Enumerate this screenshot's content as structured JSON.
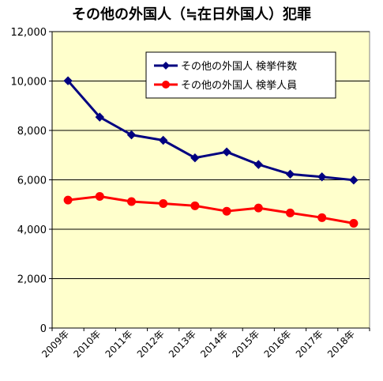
{
  "chart_data": {
    "type": "line",
    "title": "その他の外国人（≒在日外国人）犯罪",
    "categories": [
      "2009年",
      "2010年",
      "2011年",
      "2012年",
      "2013年",
      "2014年",
      "2015年",
      "2016年",
      "2017年",
      "2018年"
    ],
    "series": [
      {
        "name": "その他の外国人 検挙件数",
        "color": "#000080",
        "marker": "diamond",
        "values": [
          10010,
          8540,
          7820,
          7600,
          6890,
          7130,
          6620,
          6230,
          6120,
          5990
        ]
      },
      {
        "name": "その他の外国人 検挙人員",
        "color": "#ff0000",
        "marker": "circle",
        "values": [
          5180,
          5330,
          5120,
          5040,
          4950,
          4730,
          4860,
          4660,
          4470,
          4240
        ]
      }
    ],
    "ylim": [
      0,
      12000
    ],
    "yticks": [
      0,
      2000,
      4000,
      6000,
      8000,
      10000,
      12000
    ],
    "ytick_labels": [
      "0",
      "2,000",
      "4,000",
      "6,000",
      "8,000",
      "10,000",
      "12,000"
    ],
    "grid": true,
    "legend_position": "top-right",
    "plot_background": "#ffffcc",
    "xlabel": "",
    "ylabel": ""
  }
}
